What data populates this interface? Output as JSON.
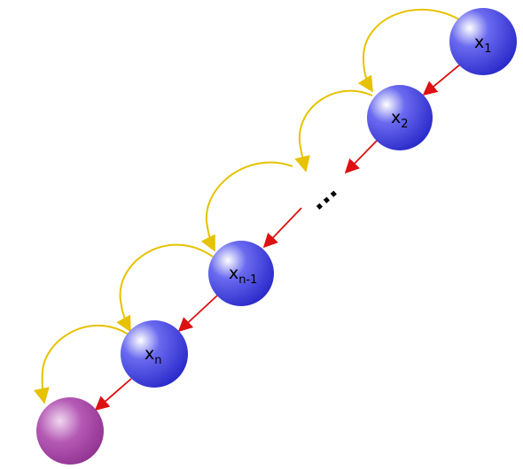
{
  "diagram": {
    "nodes": [
      {
        "id": "x1",
        "base": "x",
        "sub": "1",
        "color": "#4444dd"
      },
      {
        "id": "x2",
        "base": "x",
        "sub": "2",
        "color": "#4444dd"
      },
      {
        "id": "xn-1",
        "base": "x",
        "sub": "n-1",
        "color": "#4444dd"
      },
      {
        "id": "xn",
        "base": "x",
        "sub": "n",
        "color": "#4444dd"
      },
      {
        "id": "end",
        "base": "",
        "sub": "",
        "color": "#a040a0"
      }
    ],
    "ellipsis": "...",
    "edge_colors": {
      "forward": "#dd1111",
      "skip": "#e6c200"
    }
  }
}
